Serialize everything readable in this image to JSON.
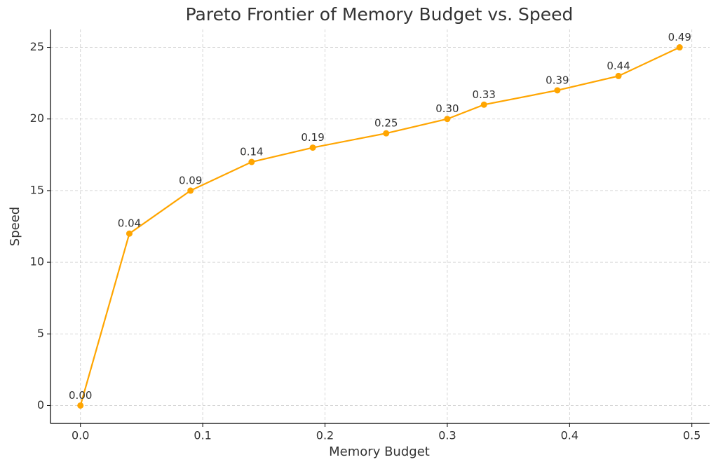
{
  "chart_data": {
    "type": "line",
    "title": "Pareto Frontier of Memory Budget vs. Speed",
    "x_label": "Memory Budget",
    "y_label": "Speed",
    "x": [
      0,
      0.04,
      0.09,
      0.14,
      0.19,
      0.25,
      0.3,
      0.33,
      0.39,
      0.44,
      0.49
    ],
    "x_labels": [
      "0.00",
      "0.04",
      "0.09",
      "0.14",
      "0.19",
      "0.25",
      "0.30",
      "0.33",
      "0.39",
      "0.44",
      "0.49"
    ],
    "series": [
      {
        "name": "Speed",
        "color": "#ffa500",
        "values": [
          0,
          12,
          15,
          17,
          18,
          19,
          20,
          21,
          22,
          23,
          25
        ]
      }
    ],
    "xlim": [
      -0.0245,
      0.5145
    ],
    "xticks": [
      {
        "value": 0,
        "label": "0.0"
      },
      0.1,
      0.2,
      0.3,
      0.4,
      0.5
    ],
    "ylim": [
      -1.25,
      26.25
    ],
    "yticks": [
      0,
      5,
      10,
      15,
      20,
      25
    ],
    "grid": true
  }
}
